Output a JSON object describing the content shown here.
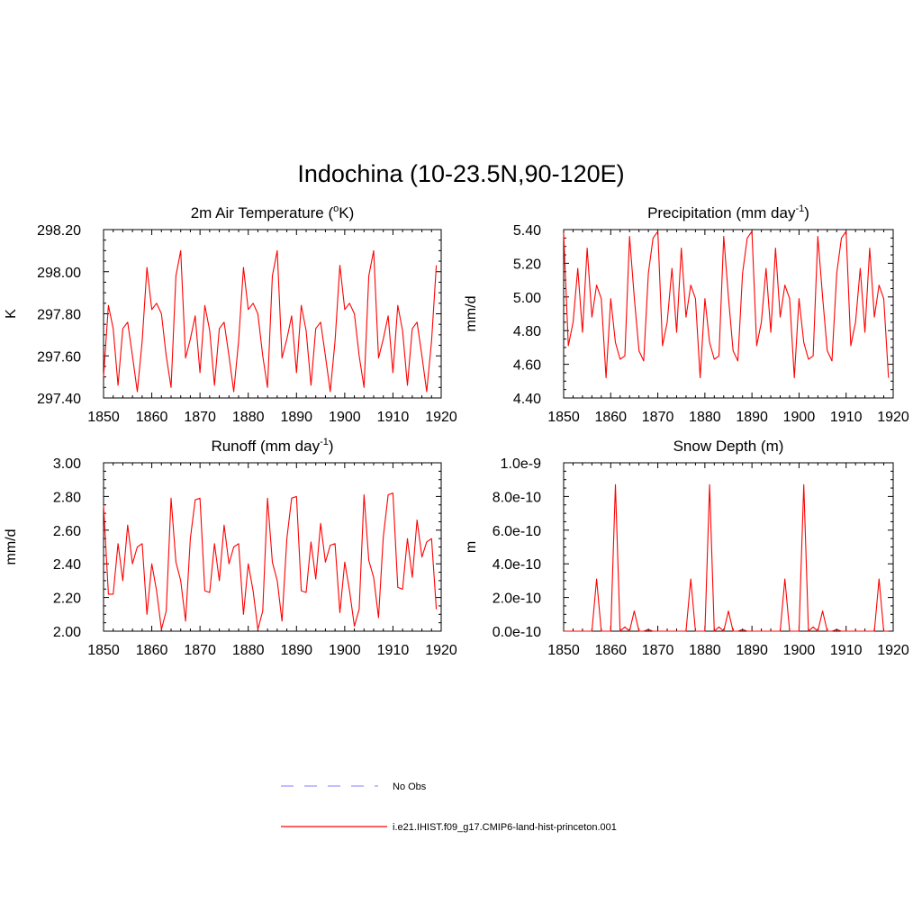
{
  "title": "Indochina (10-23.5N,90-120E)",
  "colors": {
    "model_line": "#ff0000",
    "obs_line": "#9999ff",
    "axis": "#000000"
  },
  "legend": {
    "obs_label": "No Obs",
    "model_label": "i.e21.IHIST.f09_g17.CMIP6-land-hist-princeton.001"
  },
  "chart_data": [
    {
      "type": "line",
      "title": "2m Air Temperature (",
      "title_sup": "o",
      "title_suffix": "K)",
      "ylabel": "K",
      "xlim": [
        1850,
        1920
      ],
      "ylim": [
        297.4,
        298.2
      ],
      "xticks": [
        "1850",
        "1860",
        "1870",
        "1880",
        "1890",
        "1900",
        "1910",
        "1920"
      ],
      "yticks": [
        "297.40",
        "297.60",
        "297.80",
        "298.00",
        "298.20"
      ],
      "x_start": 1850,
      "series": [
        {
          "values": [
            297.5,
            297.84,
            297.73,
            297.46,
            297.73,
            297.76,
            297.6,
            297.43,
            297.67,
            298.02,
            297.82,
            297.85,
            297.8,
            297.6,
            297.45,
            297.98,
            298.1,
            297.59,
            297.68,
            297.79,
            297.52,
            297.84,
            297.72,
            297.46,
            297.73,
            297.76,
            297.6,
            297.43,
            297.67,
            298.02,
            297.82,
            297.85,
            297.8,
            297.6,
            297.45,
            297.98,
            298.1,
            297.59,
            297.68,
            297.79,
            297.52,
            297.84,
            297.72,
            297.46,
            297.73,
            297.76,
            297.6,
            297.43,
            297.67,
            298.03,
            297.82,
            297.85,
            297.8,
            297.6,
            297.45,
            297.98,
            298.1,
            297.59,
            297.68,
            297.79,
            297.52,
            297.84,
            297.72,
            297.46,
            297.73,
            297.76,
            297.6,
            297.43,
            297.67,
            298.03
          ]
        }
      ]
    },
    {
      "type": "line",
      "title": "Precipitation (mm day",
      "title_sup": "-1",
      "title_suffix": ")",
      "ylabel": "mm/d",
      "xlim": [
        1850,
        1920
      ],
      "ylim": [
        4.4,
        5.4
      ],
      "xticks": [
        "1850",
        "1860",
        "1870",
        "1880",
        "1890",
        "1900",
        "1910",
        "1920"
      ],
      "yticks": [
        "4.40",
        "4.60",
        "4.80",
        "5.00",
        "5.20",
        "5.40"
      ],
      "x_start": 1850,
      "series": [
        {
          "values": [
            5.38,
            4.71,
            4.85,
            5.17,
            4.79,
            5.29,
            4.88,
            5.07,
            4.99,
            4.52,
            4.99,
            4.73,
            4.63,
            4.65,
            5.36,
            5.0,
            4.68,
            4.62,
            5.14,
            5.35,
            5.39,
            4.71,
            4.85,
            5.17,
            4.79,
            5.29,
            4.88,
            5.07,
            4.99,
            4.52,
            4.99,
            4.73,
            4.63,
            4.65,
            5.36,
            5.0,
            4.68,
            4.62,
            5.14,
            5.35,
            5.39,
            4.71,
            4.85,
            5.17,
            4.79,
            5.29,
            4.88,
            5.07,
            4.99,
            4.52,
            4.99,
            4.73,
            4.63,
            4.65,
            5.36,
            5.0,
            4.68,
            4.62,
            5.14,
            5.35,
            5.39,
            4.71,
            4.85,
            5.17,
            4.79,
            5.29,
            4.88,
            5.07,
            4.99,
            4.52
          ]
        }
      ]
    },
    {
      "type": "line",
      "title": "Runoff (mm day",
      "title_sup": "-1",
      "title_suffix": ")",
      "ylabel": "mm/d",
      "xlim": [
        1850,
        1920
      ],
      "ylim": [
        2.0,
        3.0
      ],
      "xticks": [
        "1850",
        "1860",
        "1870",
        "1880",
        "1890",
        "1900",
        "1910",
        "1920"
      ],
      "yticks": [
        "2.00",
        "2.20",
        "2.40",
        "2.60",
        "2.80",
        "3.00"
      ],
      "x_start": 1850,
      "series": [
        {
          "values": [
            2.75,
            2.22,
            2.22,
            2.52,
            2.3,
            2.63,
            2.4,
            2.5,
            2.52,
            2.1,
            2.4,
            2.24,
            2.01,
            2.12,
            2.79,
            2.41,
            2.3,
            2.06,
            2.55,
            2.78,
            2.79,
            2.24,
            2.23,
            2.52,
            2.3,
            2.63,
            2.4,
            2.5,
            2.52,
            2.1,
            2.4,
            2.24,
            2.01,
            2.12,
            2.79,
            2.41,
            2.3,
            2.06,
            2.55,
            2.79,
            2.8,
            2.24,
            2.23,
            2.53,
            2.31,
            2.64,
            2.41,
            2.51,
            2.52,
            2.11,
            2.41,
            2.24,
            2.03,
            2.13,
            2.81,
            2.42,
            2.32,
            2.08,
            2.56,
            2.81,
            2.82,
            2.26,
            2.25,
            2.55,
            2.32,
            2.66,
            2.44,
            2.53,
            2.55,
            2.13
          ]
        }
      ]
    },
    {
      "type": "line",
      "title": "Snow Depth (m)",
      "title_sup": "",
      "title_suffix": "",
      "ylabel": "m",
      "xlim": [
        1850,
        1920
      ],
      "ylim": [
        0,
        1e-09
      ],
      "xticks": [
        "1850",
        "1860",
        "1870",
        "1880",
        "1890",
        "1900",
        "1910",
        "1920"
      ],
      "yticks": [
        "0.0e-10",
        "2.0e-10",
        "4.0e-10",
        "6.0e-10",
        "8.0e-10",
        "1.0e-9"
      ],
      "x_start": 1850,
      "series": [
        {
          "values": [
            0,
            0,
            0,
            0,
            0,
            0,
            0,
            3.1e-10,
            0,
            0,
            0,
            8.7e-10,
            0,
            2.5e-11,
            0,
            1.2e-10,
            0,
            0,
            1e-11,
            0,
            0,
            0,
            0,
            0,
            0,
            0,
            0,
            3.1e-10,
            0,
            0,
            0,
            8.7e-10,
            0,
            2.5e-11,
            0,
            1.2e-10,
            0,
            0,
            1e-11,
            0,
            0,
            0,
            0,
            0,
            0,
            0,
            0,
            3.1e-10,
            0,
            0,
            0,
            8.7e-10,
            0,
            2.5e-11,
            0,
            1.2e-10,
            0,
            0,
            1e-11,
            0,
            0,
            0,
            0,
            0,
            0,
            0,
            0,
            3.1e-10,
            0,
            0
          ]
        }
      ]
    }
  ]
}
